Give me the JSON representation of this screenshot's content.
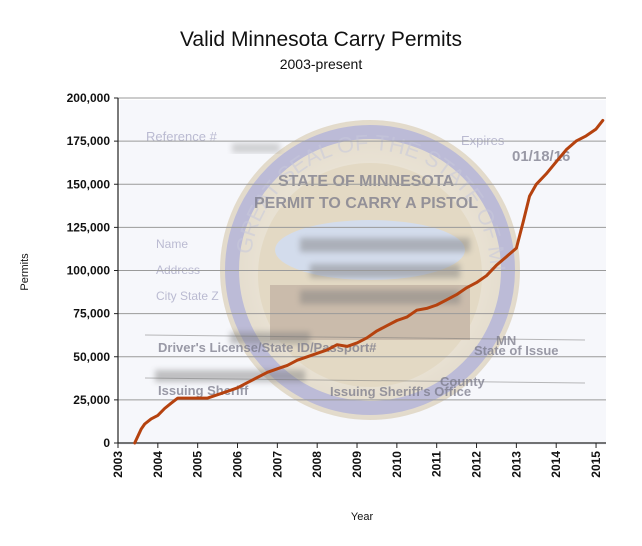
{
  "chart_data": {
    "type": "line",
    "title": "Valid Minnesota Carry Permits",
    "subtitle": "2003-present",
    "xlabel": "Year",
    "ylabel": "Permits",
    "xlim": [
      2003,
      2015.25
    ],
    "ylim": [
      0,
      200000
    ],
    "x_ticks": [
      2003,
      2004,
      2005,
      2006,
      2007,
      2008,
      2009,
      2010,
      2011,
      2012,
      2013,
      2014,
      2015
    ],
    "y_ticks": [
      0,
      25000,
      50000,
      75000,
      100000,
      125000,
      150000,
      175000,
      200000
    ],
    "y_tick_labels": [
      "0",
      "25,000",
      "50,000",
      "75,000",
      "100,000",
      "125,000",
      "150,000",
      "175,000",
      "200,000"
    ],
    "grid": "horizontal",
    "line_color": "#b5420f",
    "series": [
      {
        "x": [
          2003.42,
          2003.5,
          2003.58,
          2003.67,
          2003.83,
          2004.0,
          2004.17,
          2004.33,
          2004.5,
          2004.75,
          2005.0,
          2005.25,
          2005.5,
          2005.75,
          2006.0,
          2006.25,
          2006.5,
          2006.75,
          2007.0,
          2007.25,
          2007.5,
          2007.75,
          2008.0,
          2008.25,
          2008.5,
          2008.75,
          2009.0,
          2009.25,
          2009.5,
          2009.75,
          2010.0,
          2010.25,
          2010.5,
          2010.75,
          2011.0,
          2011.25,
          2011.5,
          2011.75,
          2012.0,
          2012.25,
          2012.5,
          2012.75,
          2013.0,
          2013.17,
          2013.33,
          2013.5,
          2013.75,
          2014.0,
          2014.25,
          2014.5,
          2014.75,
          2015.0,
          2015.17
        ],
        "y": [
          0,
          4000,
          8000,
          11000,
          14000,
          16000,
          20000,
          23000,
          26000,
          26000,
          26000,
          26000,
          28000,
          30000,
          32000,
          35000,
          38000,
          41000,
          43000,
          45000,
          48000,
          50000,
          52000,
          54000,
          57000,
          56000,
          58000,
          61000,
          65000,
          68000,
          71000,
          73000,
          77000,
          78000,
          80000,
          83000,
          86000,
          90000,
          93000,
          97000,
          103000,
          108000,
          113000,
          128000,
          143000,
          150000,
          156000,
          163000,
          170000,
          175000,
          178000,
          182000,
          187000
        ]
      }
    ]
  },
  "background": {
    "reference_label": "Reference #",
    "expires_label": "Expires",
    "expires_value": "01/18/16",
    "state_heading": "STATE OF MINNESOTA",
    "permit_heading": "PERMIT TO CARRY A PISTOL",
    "name_label": "Name",
    "address_label": "Address",
    "city_state_label": "City State Z",
    "license_label": "Driver's License/State ID/Passport#",
    "state_value": "MN",
    "state_of_issue_label": "State of Issue",
    "county_value": "County",
    "issuing_sheriff_label": "Issuing Sheriff",
    "issuing_office_label": "Issuing Sheriff's Office",
    "seal_text": "GREAT SEAL OF THE STATE OF MINNESOTA"
  }
}
